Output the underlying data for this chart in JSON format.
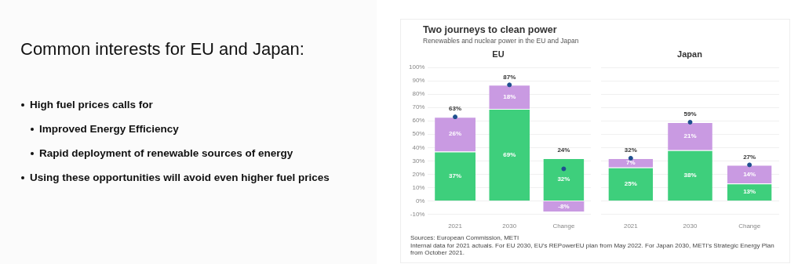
{
  "chart_data": [
    {
      "type": "other",
      "title": "Common interests for EU and Japan:",
      "annotations": [
        "High fuel prices calls for",
        "Improved Energy Efficiency",
        "Rapid deployment of renewable sources of energy",
        "Using these opportunities will avoid even higher fuel prices"
      ]
    },
    {
      "type": "other",
      "title": "Two journeys to clean power",
      "subtitle": "Renewables and nuclear power in the EU and Japan",
      "annotations": [
        "Sources: European Commission, METI",
        "Internal data for 2021 actuals. For EU 2030, EU's REPowerEU plan from May 2022. For Japan 2030, METI's Strategic Energy Plan from October 2021."
      ]
    },
    {
      "type": "bar",
      "title": "EU",
      "stacked": true,
      "categories": [
        "2021",
        "2030",
        "Change"
      ],
      "series": [
        {
          "color": "#3ecf7c",
          "values": [
            37,
            69,
            32
          ],
          "value_labels": [
            "37%",
            "69%",
            "32%"
          ]
        },
        {
          "color": "#c99ae2",
          "values": [
            26,
            18,
            -8
          ],
          "value_labels": [
            "26%",
            "18%",
            "-8%"
          ]
        },
        {
          "type": "scatter",
          "marker": "circle",
          "color": "#1f4f8f",
          "values": [
            63,
            87,
            24
          ]
        }
      ],
      "totals": [
        "63%",
        "87%",
        "24%"
      ],
      "ylim": [
        -10,
        100
      ],
      "yticks": [
        {
          "value": -10,
          "label": "-10%"
        },
        {
          "value": 0,
          "label": "0%"
        },
        {
          "value": 10,
          "label": "10%"
        },
        {
          "value": 20,
          "label": "20%"
        },
        {
          "value": 30,
          "label": "30%"
        },
        {
          "value": 40,
          "label": "40%"
        },
        {
          "value": 50,
          "label": "50%"
        },
        {
          "value": 60,
          "label": "60%"
        },
        {
          "value": 70,
          "label": "70%"
        },
        {
          "value": 80,
          "label": "80%"
        },
        {
          "value": 90,
          "label": "90%"
        },
        {
          "value": 100,
          "label": "100%"
        }
      ],
      "grid": "y"
    },
    {
      "type": "bar",
      "title": "Japan",
      "stacked": true,
      "categories": [
        "2021",
        "2030",
        "Change"
      ],
      "series": [
        {
          "color": "#3ecf7c",
          "values": [
            25,
            38,
            13
          ],
          "value_labels": [
            "25%",
            "38%",
            "13%"
          ]
        },
        {
          "color": "#c99ae2",
          "values": [
            7,
            21,
            14
          ],
          "value_labels": [
            "7%",
            "21%",
            "14%"
          ]
        },
        {
          "type": "scatter",
          "marker": "circle",
          "color": "#1f4f8f",
          "values": [
            32,
            59,
            27
          ]
        }
      ],
      "totals": [
        "32%",
        "59%",
        "27%"
      ],
      "ylim": [
        -10,
        100
      ],
      "yticks": [
        -10,
        0,
        10,
        20,
        30,
        40,
        50,
        60,
        70,
        80,
        90,
        100
      ],
      "grid": "y",
      "tick_labels": "x"
    }
  ]
}
